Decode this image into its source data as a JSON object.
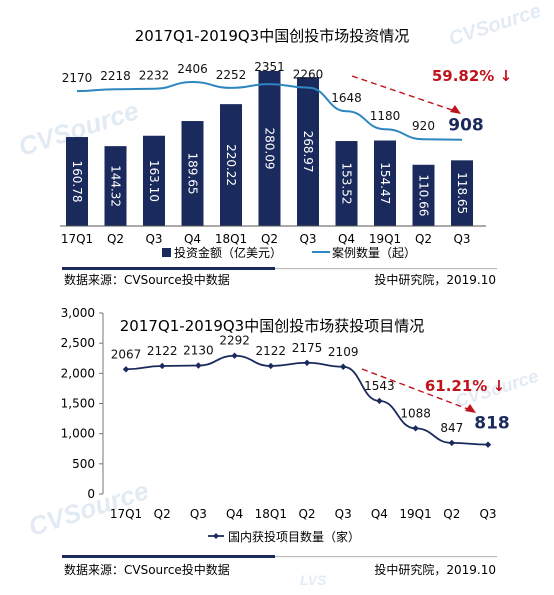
{
  "chart_data": [
    {
      "type": "bar+line",
      "title": "2017Q1-2019Q3中国创投市场投资情况",
      "categories": [
        "17Q1",
        "Q2",
        "Q3",
        "Q4",
        "18Q1",
        "Q2",
        "Q3",
        "Q4",
        "19Q1",
        "Q2",
        "Q3"
      ],
      "series": [
        {
          "name": "投资金额（亿美元）",
          "type": "bar",
          "values": [
            160.78,
            144.32,
            163.1,
            189.65,
            220.22,
            280.09,
            268.97,
            153.52,
            154.47,
            110.66,
            118.65
          ],
          "labels": [
            "160.78",
            "144.32",
            "163.10",
            "189.65",
            "220.22",
            "280.09",
            "268.97",
            "153.52",
            "154.47",
            "110.66",
            "118.65"
          ]
        },
        {
          "name": "案例数量（起）",
          "type": "line",
          "values": [
            2170,
            2218,
            2232,
            2406,
            2252,
            2351,
            2260,
            1648,
            1180,
            920,
            908
          ],
          "labels": [
            "2170",
            "2218",
            "2232",
            "2406",
            "2252",
            "2351",
            "2260",
            "1648",
            "1180",
            "920",
            "908"
          ]
        }
      ],
      "annotation": "59.82%",
      "annotation_arrow": "↓",
      "source_left": "数据来源：CVSource投中数据",
      "source_right": "投中研究院，2019.10",
      "bar_color": "#1b2a5c",
      "line_color": "#2e86c1",
      "annotation_color": "#c0141c"
    },
    {
      "type": "line",
      "title": "2017Q1-2019Q3中国创投市场获投项目情况",
      "categories": [
        "17Q1",
        "Q2",
        "Q3",
        "Q4",
        "18Q1",
        "Q2",
        "Q3",
        "Q4",
        "19Q1",
        "Q2",
        "Q3"
      ],
      "series": [
        {
          "name": "国内获投项目数量（家）",
          "values": [
            2067,
            2122,
            2130,
            2292,
            2122,
            2175,
            2109,
            1543,
            1088,
            847,
            818
          ],
          "labels": [
            "2067",
            "2122",
            "2130",
            "2292",
            "2122",
            "2175",
            "2109",
            "1543",
            "1088",
            "847",
            "818"
          ]
        }
      ],
      "ylim": [
        0,
        3000
      ],
      "yticks": [
        "0",
        "500",
        "1,000",
        "1,500",
        "2,000",
        "2,500",
        "3,000"
      ],
      "annotation": "61.21%",
      "annotation_arrow": "↓",
      "source_left": "数据来源：CVSource投中数据",
      "source_right": "投中研究院，2019.10",
      "line_color": "#1b2a5c",
      "annotation_color": "#c0141c"
    }
  ]
}
